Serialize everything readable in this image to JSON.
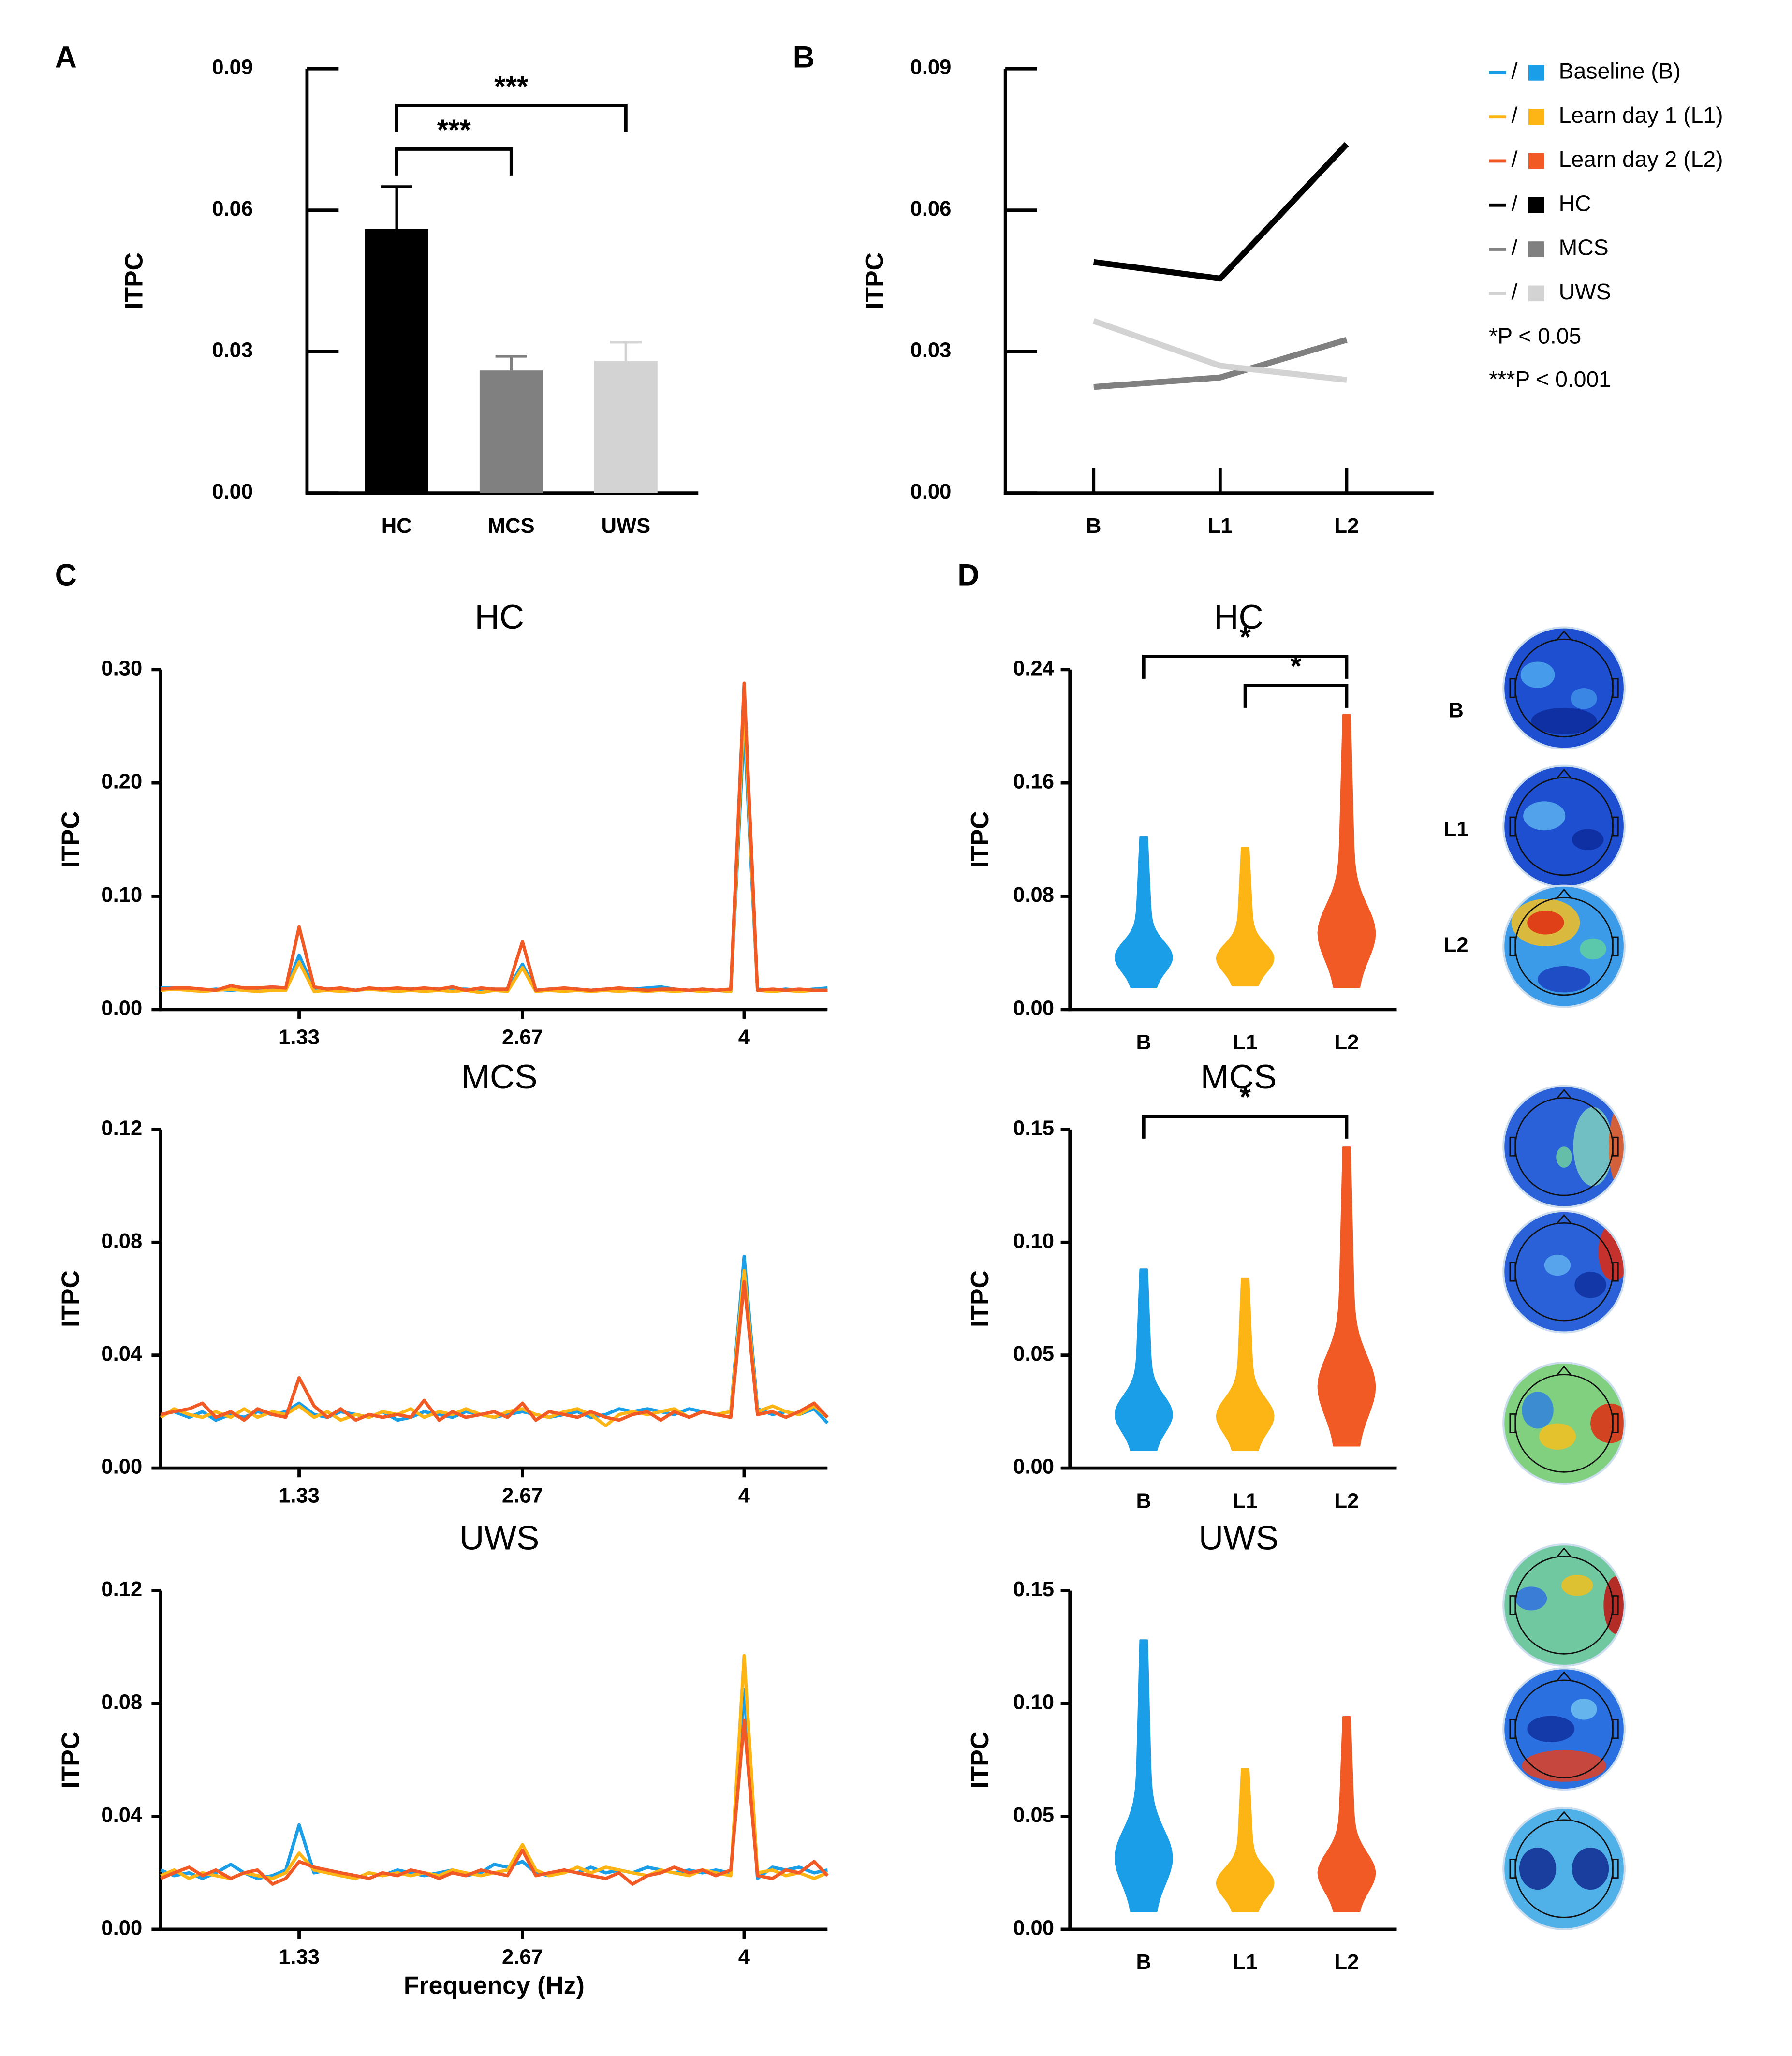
{
  "chart_data": [
    {
      "type": "bar",
      "panel": "A",
      "ylabel": "ITPC",
      "categories": [
        "HC",
        "MCS",
        "UWS"
      ],
      "values": [
        0.056,
        0.026,
        0.028
      ],
      "errors": [
        0.009,
        0.003,
        0.004
      ],
      "colors": [
        "#000000",
        "#808080",
        "#d3d3d3"
      ],
      "ylim": [
        0,
        0.09
      ],
      "yticks": [
        {
          "value": 0,
          "label": "0.00"
        },
        0.03,
        0.06,
        0.09
      ],
      "annotations": [
        {
          "label": "***",
          "between": [
            "HC",
            "MCS"
          ]
        },
        {
          "label": "***",
          "between": [
            "HC",
            "UWS"
          ]
        }
      ]
    },
    {
      "type": "line",
      "panel": "B",
      "ylabel": "ITPC",
      "categories": [
        "B",
        "L1",
        "L2"
      ],
      "series": [
        {
          "name": "HC",
          "color": "#000000",
          "values": [
            0.049,
            0.0455,
            0.074
          ]
        },
        {
          "name": "MCS",
          "color": "#808080",
          "values": [
            0.0225,
            0.0245,
            0.0325
          ]
        },
        {
          "name": "UWS",
          "color": "#d3d3d3",
          "values": [
            0.0365,
            0.027,
            0.024
          ]
        }
      ],
      "ylim": [
        0,
        0.09
      ],
      "yticks": [
        {
          "value": 0,
          "label": "0.00"
        },
        0.03,
        0.06,
        0.09
      ]
    },
    {
      "type": "line",
      "panel": "C",
      "title": "HC",
      "ylabel": "ITPC",
      "x": [
        0.5,
        0.58,
        0.67,
        0.75,
        0.83,
        0.92,
        1,
        1.08,
        1.17,
        1.25,
        1.33,
        1.42,
        1.5,
        1.58,
        1.67,
        1.75,
        1.83,
        1.92,
        2,
        2.08,
        2.17,
        2.25,
        2.33,
        2.42,
        2.5,
        2.58,
        2.67,
        2.75,
        2.83,
        2.92,
        3,
        3.08,
        3.17,
        3.25,
        3.33,
        3.42,
        3.5,
        3.58,
        3.67,
        3.75,
        3.83,
        3.92,
        4,
        4.08,
        4.17,
        4.25,
        4.33,
        4.42,
        4.5
      ],
      "xlim": [
        0.5,
        4.5
      ],
      "xticks": [
        1.33,
        2.67,
        4
      ],
      "ylim": [
        0,
        0.3
      ],
      "yticks": [
        {
          "value": 0,
          "label": "0.00"
        },
        {
          "value": 0.1,
          "label": "0.10"
        },
        {
          "value": 0.2,
          "label": "0.20"
        },
        {
          "value": 0.3,
          "label": "0.30"
        }
      ],
      "series": [
        {
          "color": "#1a9ee8",
          "values": [
            0.019,
            0.019,
            0.018,
            0.017,
            0.018,
            0.017,
            0.018,
            0.017,
            0.018,
            0.018,
            0.048,
            0.018,
            0.017,
            0.018,
            0.017,
            0.018,
            0.018,
            0.017,
            0.018,
            0.018,
            0.017,
            0.018,
            0.018,
            0.017,
            0.018,
            0.017,
            0.04,
            0.017,
            0.018,
            0.017,
            0.018,
            0.017,
            0.018,
            0.017,
            0.018,
            0.019,
            0.02,
            0.018,
            0.017,
            0.018,
            0.017,
            0.016,
            0.25,
            0.018,
            0.017,
            0.018,
            0.017,
            0.018,
            0.019
          ]
        },
        {
          "color": "#fdb515",
          "values": [
            0.017,
            0.018,
            0.017,
            0.016,
            0.017,
            0.018,
            0.017,
            0.016,
            0.017,
            0.017,
            0.042,
            0.016,
            0.017,
            0.016,
            0.017,
            0.018,
            0.017,
            0.016,
            0.017,
            0.016,
            0.017,
            0.016,
            0.017,
            0.015,
            0.017,
            0.016,
            0.037,
            0.016,
            0.017,
            0.016,
            0.017,
            0.016,
            0.017,
            0.016,
            0.017,
            0.016,
            0.017,
            0.016,
            0.017,
            0.016,
            0.017,
            0.016,
            0.27,
            0.017,
            0.016,
            0.017,
            0.016,
            0.017,
            0.017
          ]
        },
        {
          "color": "#f15a24",
          "values": [
            0.018,
            0.019,
            0.019,
            0.018,
            0.017,
            0.021,
            0.019,
            0.019,
            0.02,
            0.019,
            0.073,
            0.02,
            0.018,
            0.019,
            0.017,
            0.019,
            0.018,
            0.019,
            0.018,
            0.019,
            0.018,
            0.02,
            0.017,
            0.019,
            0.018,
            0.018,
            0.06,
            0.017,
            0.018,
            0.019,
            0.018,
            0.017,
            0.018,
            0.019,
            0.018,
            0.017,
            0.018,
            0.018,
            0.017,
            0.018,
            0.017,
            0.018,
            0.288,
            0.017,
            0.018,
            0.017,
            0.018,
            0.017,
            0.017
          ]
        }
      ]
    },
    {
      "type": "line",
      "title": "MCS",
      "ylabel": "ITPC",
      "x": [
        0.5,
        0.58,
        0.67,
        0.75,
        0.83,
        0.92,
        1,
        1.08,
        1.17,
        1.25,
        1.33,
        1.42,
        1.5,
        1.58,
        1.67,
        1.75,
        1.83,
        1.92,
        2,
        2.08,
        2.17,
        2.25,
        2.33,
        2.42,
        2.5,
        2.58,
        2.67,
        2.75,
        2.83,
        2.92,
        3,
        3.08,
        3.17,
        3.25,
        3.33,
        3.42,
        3.5,
        3.58,
        3.67,
        3.75,
        3.83,
        3.92,
        4,
        4.08,
        4.17,
        4.25,
        4.33,
        4.42,
        4.5
      ],
      "xlim": [
        0.5,
        4.5
      ],
      "xticks": [
        1.33,
        2.67,
        4
      ],
      "ylim": [
        0,
        0.12
      ],
      "yticks": [
        {
          "value": 0,
          "label": "0.00"
        },
        0.04,
        0.08,
        0.12
      ],
      "series": [
        {
          "color": "#1a9ee8",
          "values": [
            0.019,
            0.02,
            0.018,
            0.02,
            0.017,
            0.019,
            0.018,
            0.02,
            0.019,
            0.02,
            0.023,
            0.019,
            0.018,
            0.02,
            0.019,
            0.018,
            0.02,
            0.017,
            0.018,
            0.02,
            0.019,
            0.018,
            0.02,
            0.019,
            0.018,
            0.019,
            0.02,
            0.019,
            0.018,
            0.019,
            0.02,
            0.018,
            0.019,
            0.021,
            0.02,
            0.021,
            0.02,
            0.019,
            0.021,
            0.02,
            0.019,
            0.02,
            0.075,
            0.021,
            0.019,
            0.02,
            0.019,
            0.021,
            0.016
          ]
        },
        {
          "color": "#fdb515",
          "values": [
            0.018,
            0.021,
            0.019,
            0.018,
            0.02,
            0.018,
            0.021,
            0.018,
            0.02,
            0.019,
            0.022,
            0.018,
            0.02,
            0.017,
            0.019,
            0.018,
            0.02,
            0.019,
            0.021,
            0.018,
            0.02,
            0.019,
            0.021,
            0.019,
            0.018,
            0.02,
            0.021,
            0.019,
            0.018,
            0.02,
            0.021,
            0.019,
            0.015,
            0.019,
            0.02,
            0.019,
            0.02,
            0.021,
            0.018,
            0.02,
            0.019,
            0.02,
            0.07,
            0.02,
            0.022,
            0.02,
            0.019,
            0.022,
            0.018
          ]
        },
        {
          "color": "#f15a24",
          "values": [
            0.019,
            0.02,
            0.021,
            0.023,
            0.018,
            0.02,
            0.017,
            0.021,
            0.019,
            0.018,
            0.032,
            0.022,
            0.018,
            0.021,
            0.017,
            0.019,
            0.018,
            0.019,
            0.018,
            0.024,
            0.017,
            0.02,
            0.018,
            0.019,
            0.02,
            0.018,
            0.023,
            0.017,
            0.02,
            0.019,
            0.018,
            0.02,
            0.018,
            0.017,
            0.019,
            0.02,
            0.017,
            0.02,
            0.018,
            0.02,
            0.019,
            0.018,
            0.066,
            0.019,
            0.02,
            0.018,
            0.02,
            0.023,
            0.018
          ]
        }
      ]
    },
    {
      "type": "line",
      "title": "UWS",
      "ylabel": "ITPC",
      "xlabel": "Frequency (Hz)",
      "x": [
        0.5,
        0.58,
        0.67,
        0.75,
        0.83,
        0.92,
        1,
        1.08,
        1.17,
        1.25,
        1.33,
        1.42,
        1.5,
        1.58,
        1.67,
        1.75,
        1.83,
        1.92,
        2,
        2.08,
        2.17,
        2.25,
        2.33,
        2.42,
        2.5,
        2.58,
        2.67,
        2.75,
        2.83,
        2.92,
        3,
        3.08,
        3.17,
        3.25,
        3.33,
        3.42,
        3.5,
        3.58,
        3.67,
        3.75,
        3.83,
        3.92,
        4,
        4.08,
        4.17,
        4.25,
        4.33,
        4.42,
        4.5
      ],
      "xlim": [
        0.5,
        4.5
      ],
      "xticks": [
        1.33,
        2.67,
        4
      ],
      "ylim": [
        0,
        0.12
      ],
      "yticks": [
        {
          "value": 0,
          "label": "0.00"
        },
        0.04,
        0.08,
        0.12
      ],
      "series": [
        {
          "color": "#1a9ee8",
          "values": [
            0.021,
            0.019,
            0.02,
            0.018,
            0.02,
            0.023,
            0.02,
            0.018,
            0.019,
            0.021,
            0.037,
            0.02,
            0.021,
            0.019,
            0.018,
            0.02,
            0.019,
            0.021,
            0.02,
            0.019,
            0.02,
            0.021,
            0.019,
            0.02,
            0.023,
            0.022,
            0.024,
            0.02,
            0.019,
            0.021,
            0.02,
            0.022,
            0.02,
            0.021,
            0.02,
            0.022,
            0.021,
            0.02,
            0.021,
            0.02,
            0.021,
            0.02,
            0.085,
            0.018,
            0.022,
            0.021,
            0.022,
            0.02,
            0.021
          ]
        },
        {
          "color": "#fdb515",
          "values": [
            0.019,
            0.021,
            0.018,
            0.02,
            0.019,
            0.018,
            0.02,
            0.019,
            0.018,
            0.02,
            0.027,
            0.021,
            0.02,
            0.019,
            0.018,
            0.02,
            0.019,
            0.02,
            0.019,
            0.02,
            0.019,
            0.021,
            0.02,
            0.019,
            0.02,
            0.021,
            0.03,
            0.021,
            0.019,
            0.02,
            0.022,
            0.02,
            0.022,
            0.021,
            0.02,
            0.019,
            0.021,
            0.02,
            0.019,
            0.021,
            0.02,
            0.019,
            0.097,
            0.02,
            0.021,
            0.019,
            0.02,
            0.018,
            0.02
          ]
        },
        {
          "color": "#f15a24",
          "values": [
            0.018,
            0.02,
            0.022,
            0.019,
            0.021,
            0.018,
            0.02,
            0.021,
            0.016,
            0.018,
            0.024,
            0.022,
            0.021,
            0.02,
            0.019,
            0.018,
            0.02,
            0.019,
            0.021,
            0.02,
            0.018,
            0.02,
            0.019,
            0.021,
            0.02,
            0.019,
            0.028,
            0.019,
            0.02,
            0.021,
            0.02,
            0.019,
            0.018,
            0.02,
            0.016,
            0.019,
            0.02,
            0.022,
            0.02,
            0.021,
            0.019,
            0.021,
            0.074,
            0.019,
            0.018,
            0.021,
            0.02,
            0.024,
            0.019
          ]
        }
      ]
    },
    {
      "type": "violin",
      "panel": "D",
      "title": "HC",
      "ylabel": "ITPC",
      "categories": [
        "B",
        "L1",
        "L2"
      ],
      "colors": [
        "#1a9ee8",
        "#fdb515",
        "#f15a24"
      ],
      "ranges": [
        [
          0.016,
          0.122
        ],
        [
          0.017,
          0.114
        ],
        [
          0.016,
          0.208
        ]
      ],
      "ylim": [
        0,
        0.24
      ],
      "yticks": [
        {
          "value": 0,
          "label": "0.00"
        },
        0.08,
        0.16,
        0.24
      ],
      "annotations": [
        {
          "label": "*",
          "between": [
            "B",
            "L2"
          ]
        },
        {
          "label": "*",
          "between": [
            "L1",
            "L2"
          ]
        }
      ],
      "topomap_labels": [
        "B",
        "L1",
        "L2"
      ]
    },
    {
      "type": "violin",
      "title": "MCS",
      "ylabel": "ITPC",
      "categories": [
        "B",
        "L1",
        "L2"
      ],
      "colors": [
        "#1a9ee8",
        "#fdb515",
        "#f15a24"
      ],
      "ranges": [
        [
          0.008,
          0.088
        ],
        [
          0.008,
          0.084
        ],
        [
          0.01,
          0.142
        ]
      ],
      "ylim": [
        0,
        0.15
      ],
      "yticks": [
        {
          "value": 0,
          "label": "0.00"
        },
        0.05,
        {
          "value": 0.1,
          "label": "0.10"
        },
        0.15
      ],
      "annotations": [
        {
          "label": "*",
          "between": [
            "B",
            "L2"
          ]
        }
      ]
    },
    {
      "type": "violin",
      "title": "UWS",
      "ylabel": "ITPC",
      "categories": [
        "B",
        "L1",
        "L2"
      ],
      "colors": [
        "#1a9ee8",
        "#fdb515",
        "#f15a24"
      ],
      "ranges": [
        [
          0.008,
          0.128
        ],
        [
          0.008,
          0.071
        ],
        [
          0.008,
          0.094
        ]
      ],
      "ylim": [
        0,
        0.15
      ],
      "yticks": [
        {
          "value": 0,
          "label": "0.00"
        },
        0.05,
        {
          "value": 0.1,
          "label": "0.10"
        },
        0.15
      ]
    }
  ],
  "legend": {
    "entries": [
      {
        "name": "Baseline (B)",
        "color": "#1a9ee8"
      },
      {
        "name": "Learn day 1 (L1)",
        "color": "#fdb515"
      },
      {
        "name": "Learn day 2 (L2)",
        "color": "#f15a24"
      }
    ],
    "separator": "/",
    "notes": [
      "*P < 0.05",
      "***P < 0.001"
    ]
  }
}
